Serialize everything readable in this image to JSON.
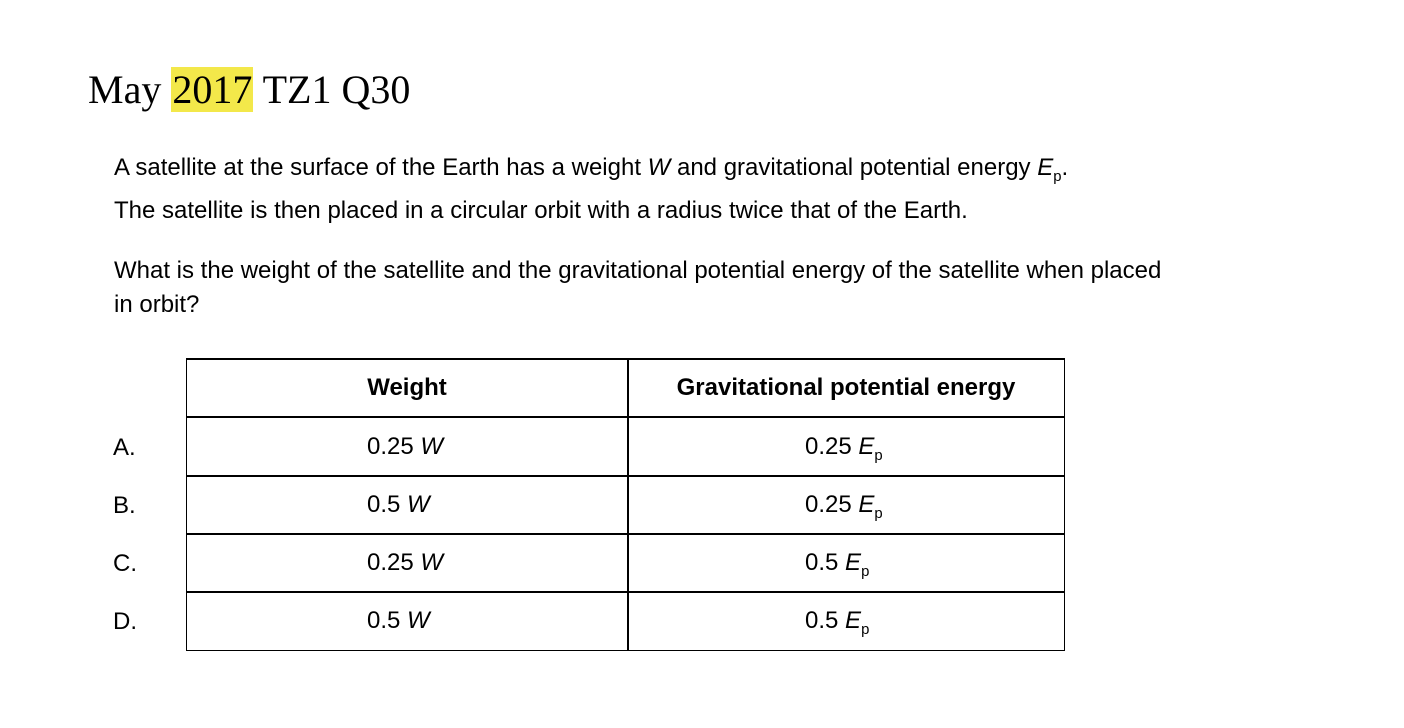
{
  "heading": {
    "prefix": "May ",
    "year": "2017",
    "suffix": " TZ1 Q30"
  },
  "question": {
    "line1_a": "A satellite at the surface of the Earth has a weight ",
    "line1_w": "W",
    "line1_b": " and gravitational potential energy ",
    "line1_e": "E",
    "line1_sub": "p",
    "line1_end": ".",
    "line2": "The satellite is then placed in a circular orbit with a radius twice that of the Earth.",
    "line3": "What is the weight of the satellite and the gravitational potential energy of the satellite when placed",
    "line4": "in orbit?"
  },
  "table": {
    "headers": [
      "Weight",
      "Gravitational potential energy"
    ],
    "rows": [
      {
        "label": "A.",
        "weight_num": "0.25",
        "weight_sym": "W",
        "gpe_num": "0.25",
        "gpe_sym": "E",
        "gpe_sub": "p"
      },
      {
        "label": "B.",
        "weight_num": "0.5",
        "weight_sym": "W",
        "gpe_num": "0.25",
        "gpe_sym": "E",
        "gpe_sub": "p"
      },
      {
        "label": "C.",
        "weight_num": "0.25",
        "weight_sym": "W",
        "gpe_num": "0.5",
        "gpe_sym": "E",
        "gpe_sub": "p"
      },
      {
        "label": "D.",
        "weight_num": "0.5",
        "weight_sym": "W",
        "gpe_num": "0.5",
        "gpe_sym": "E",
        "gpe_sub": "p"
      }
    ]
  },
  "colors": {
    "highlight": "#f3e84a"
  }
}
